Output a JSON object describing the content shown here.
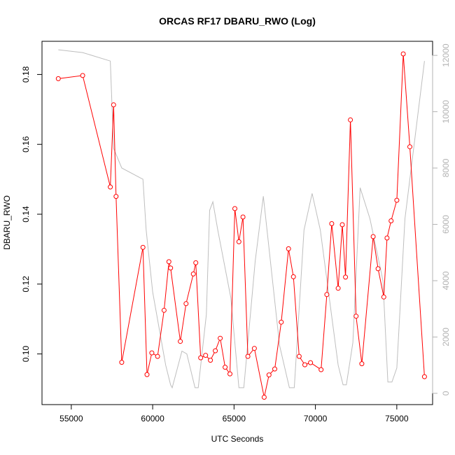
{
  "chart_data": {
    "type": "line",
    "title": "ORCAS RF17 DBARU_RWO (Log)",
    "xlabel": "UTC Seconds",
    "ylabel": "DBARU_RWO",
    "xlim": [
      53200,
      77200
    ],
    "ylim": [
      0.0855,
      0.1895
    ],
    "y2lim": [
      -400,
      12500
    ],
    "x_ticks": [
      55000,
      60000,
      65000,
      70000,
      75000
    ],
    "x_tick_labels": [
      "55000",
      "60000",
      "65000",
      "70000",
      "75000"
    ],
    "y_ticks": [
      0.1,
      0.12,
      0.14,
      0.16,
      0.18
    ],
    "y_tick_labels": [
      "0.10",
      "0.12",
      "0.14",
      "0.16",
      "0.18"
    ],
    "y2_ticks": [
      0,
      2000,
      4000,
      6000,
      8000,
      10000,
      12000
    ],
    "y2_tick_labels": [
      "0",
      "2000",
      "4000",
      "6000",
      "8000",
      "10000",
      "12000"
    ],
    "grid": false,
    "series": [
      {
        "axis": "left",
        "color": "#ff0000",
        "markers": "open-circle",
        "x": [
          54200,
          55700,
          57400,
          57600,
          57750,
          58100,
          59400,
          59650,
          59950,
          60300,
          60700,
          61000,
          61100,
          61700,
          62050,
          62500,
          62650,
          62950,
          63250,
          63550,
          63850,
          64150,
          64450,
          64750,
          65050,
          65300,
          65550,
          65850,
          66250,
          66850,
          67150,
          67500,
          67900,
          68350,
          68650,
          69000,
          69350,
          69700,
          70350,
          70700,
          71000,
          71400,
          71650,
          71850,
          72150,
          72500,
          72850,
          73550,
          73850,
          74200,
          74400,
          74650,
          75000,
          75400,
          75800,
          76700
        ],
        "y": [
          0.1788,
          0.1797,
          0.1478,
          0.1713,
          0.1451,
          0.0976,
          0.1305,
          0.0941,
          0.1003,
          0.0993,
          0.1125,
          0.1264,
          0.1246,
          0.1036,
          0.1144,
          0.1229,
          0.1261,
          0.0989,
          0.0996,
          0.0982,
          0.1009,
          0.1045,
          0.0962,
          0.0943,
          0.1416,
          0.1321,
          0.1392,
          0.0993,
          0.1016,
          0.0876,
          0.094,
          0.0957,
          0.1091,
          0.1301,
          0.1221,
          0.0993,
          0.0969,
          0.0975,
          0.0955,
          0.117,
          0.1373,
          0.1188,
          0.137,
          0.122,
          0.167,
          0.1108,
          0.0972,
          0.1336,
          0.1244,
          0.1163,
          0.1332,
          0.1381,
          0.144,
          0.1859,
          0.1593,
          0.0935
        ]
      },
      {
        "axis": "right",
        "color": "#bebebe",
        "markers": "none",
        "x": [
          54200,
          55700,
          57400,
          57600,
          58100,
          59400,
          59600,
          60000,
          60800,
          61100,
          61200,
          61800,
          62100,
          62600,
          62800,
          63300,
          63500,
          63700,
          64000,
          64800,
          65300,
          65600,
          66300,
          66800,
          67800,
          68400,
          68700,
          69300,
          69800,
          70300,
          71400,
          71700,
          71900,
          72300,
          72750,
          73350,
          74150,
          74450,
          74700,
          75000,
          75500,
          76700
        ],
        "y": [
          12200,
          12100,
          11800,
          8700,
          8000,
          7600,
          5800,
          3600,
          1000,
          300,
          200,
          1500,
          1400,
          200,
          200,
          2800,
          6500,
          6800,
          5800,
          3400,
          200,
          200,
          4700,
          7000,
          1700,
          200,
          200,
          5800,
          7100,
          5800,
          1000,
          300,
          300,
          1800,
          7300,
          6200,
          4000,
          400,
          400,
          900,
          6200,
          11800
        ]
      }
    ]
  }
}
